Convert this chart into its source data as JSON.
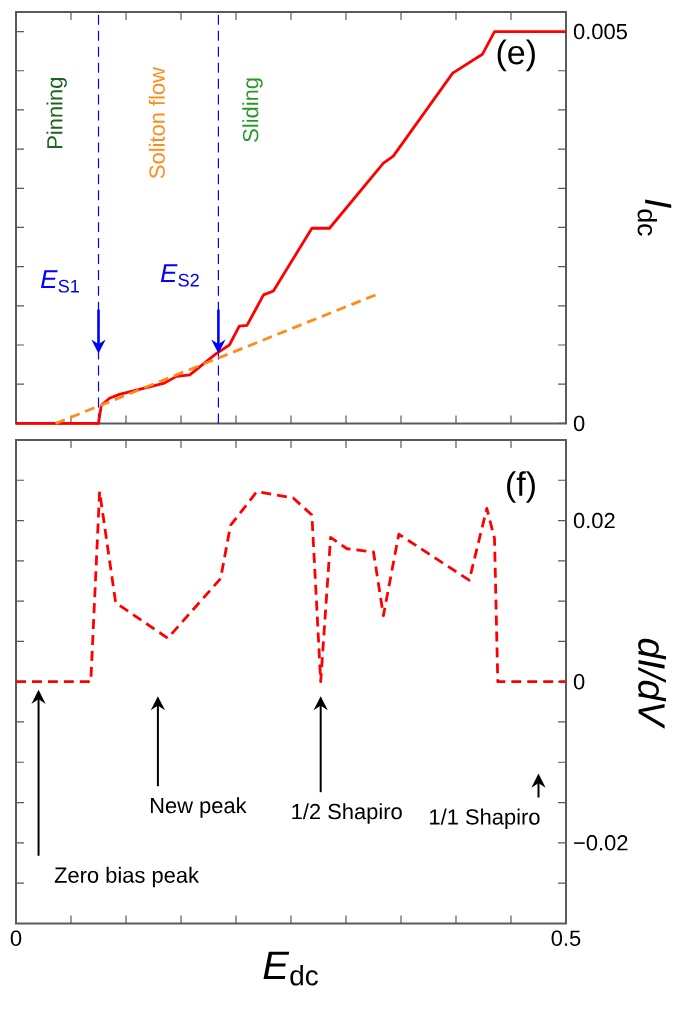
{
  "chart_data": [
    {
      "type": "line",
      "ylabel": "*I*$_{dc}$",
      "xlim": [
        0,
        0.5
      ],
      "ylim": [
        0,
        0.00525
      ],
      "tick_labels": "y",
      "marker": "none",
      "xticks": [
        {
          "value": 0,
          "label": null
        },
        {
          "value": 0.05,
          "label": null
        },
        {
          "value": 0.1,
          "label": null
        },
        {
          "value": 0.15,
          "label": null
        },
        {
          "value": 0.2,
          "label": null
        },
        {
          "value": 0.25,
          "label": null
        },
        {
          "value": 0.3,
          "label": null
        },
        {
          "value": 0.35,
          "label": null
        },
        {
          "value": 0.4,
          "label": null
        },
        {
          "value": 0.45,
          "label": null
        },
        {
          "value": 0.5,
          "label": null
        }
      ],
      "yticks": [
        {
          "value": 0,
          "label": "0"
        },
        {
          "value": 0.0005,
          "label": null
        },
        {
          "value": 0.001,
          "label": null
        },
        {
          "value": 0.0015,
          "label": null
        },
        {
          "value": 0.002,
          "label": null
        },
        {
          "value": 0.0025,
          "label": null
        },
        {
          "value": 0.003,
          "label": null
        },
        {
          "value": 0.0035,
          "label": null
        },
        {
          "value": 0.004,
          "label": null
        },
        {
          "value": 0.0045,
          "label": null
        },
        {
          "value": 0.005,
          "label": "0.005"
        }
      ],
      "series": [
        {
          "color": "#ff0000",
          "line_style": "solid",
          "x": [
            0,
            0.075,
            0.0775,
            0.085,
            0.094,
            0.134,
            0.146,
            0.158,
            0.182,
            0.194,
            0.203,
            0.21,
            0.225,
            0.234,
            0.269,
            0.285,
            0.334,
            0.343,
            0.397,
            0.424,
            0.435,
            0.5
          ],
          "values": [
            0,
            0,
            0.00023,
            0.00032,
            0.00037,
            0.00051,
            0.0006,
            0.00062,
            0.00089,
            0.001,
            0.00124,
            0.00125,
            0.00164,
            0.00169,
            0.00249,
            0.00249,
            0.00332,
            0.00341,
            0.00447,
            0.00471,
            0.005,
            0.005
          ]
        },
        {
          "color": "#ff8c1a",
          "line_style": "dashed",
          "x": [
            0.036,
            0.327
          ],
          "values": [
            0,
            0.00164
          ]
        }
      ],
      "ref_lines": [
        {
          "axis": "x",
          "value": 0.075,
          "color": "#0000ff",
          "line_style": "dashed"
        },
        {
          "axis": "x",
          "value": 0.184,
          "color": "#0000ff",
          "line_style": "dashed"
        }
      ],
      "annotations": [
        "(e)",
        "Pinning",
        "Soliton flow",
        "Sliding",
        {
          "text": "*E*$_{S1}$",
          "x": 0.075,
          "y": 0.00089
        },
        {
          "text": "*E*$_{S2}$",
          "x": 0.184,
          "y": 0.00089
        }
      ]
    },
    {
      "type": "line",
      "xlabel": "*E*$_{dc}$",
      "ylabel": "dI/dV",
      "xlim": [
        0,
        0.5
      ],
      "ylim": [
        -0.03,
        0.03
      ],
      "marker": "none",
      "xticks": [
        {
          "value": 0,
          "label": "0"
        },
        {
          "value": 0.05,
          "label": null
        },
        {
          "value": 0.1,
          "label": null
        },
        {
          "value": 0.15,
          "label": null
        },
        {
          "value": 0.2,
          "label": null
        },
        {
          "value": 0.25,
          "label": null
        },
        {
          "value": 0.3,
          "label": null
        },
        {
          "value": 0.35,
          "label": null
        },
        {
          "value": 0.4,
          "label": null
        },
        {
          "value": 0.45,
          "label": null
        },
        {
          "value": 0.5,
          "label": "0.5"
        }
      ],
      "yticks": [
        {
          "value": -0.025,
          "label": null
        },
        {
          "value": -0.02,
          "label": "−0.02"
        },
        {
          "value": -0.015,
          "label": null
        },
        {
          "value": -0.01,
          "label": null
        },
        {
          "value": -0.005,
          "label": null
        },
        {
          "value": 0,
          "label": "0"
        },
        {
          "value": 0.005,
          "label": null
        },
        {
          "value": 0.01,
          "label": null
        },
        {
          "value": 0.015,
          "label": null
        },
        {
          "value": 0.02,
          "label": "0.02"
        },
        {
          "value": 0.025,
          "label": null
        }
      ],
      "series": [
        {
          "color": "#ff0000",
          "line_style": "dashed",
          "x": [
            0,
            0.068,
            0.076,
            0.0906,
            0.138,
            0.186,
            0.195,
            0.219,
            0.252,
            0.269,
            0.277,
            0.286,
            0.301,
            0.325,
            0.334,
            0.348,
            0.412,
            0.428,
            0.435,
            0.438,
            0.5
          ],
          "values": [
            0,
            0,
            0.0236,
            0.0098,
            0.0054,
            0.0128,
            0.0194,
            0.0236,
            0.0228,
            0.0207,
            0,
            0.0179,
            0.0165,
            0.0161,
            0.0082,
            0.0183,
            0.0126,
            0.0215,
            0.0178,
            0,
            0
          ]
        }
      ],
      "annotations": [
        "(f)",
        {
          "text": "Zero bias peak",
          "x": 0.0205,
          "y": -0.001
        },
        "New peak",
        "1/2 Shapiro",
        "1/1 Shapiro"
      ]
    }
  ]
}
